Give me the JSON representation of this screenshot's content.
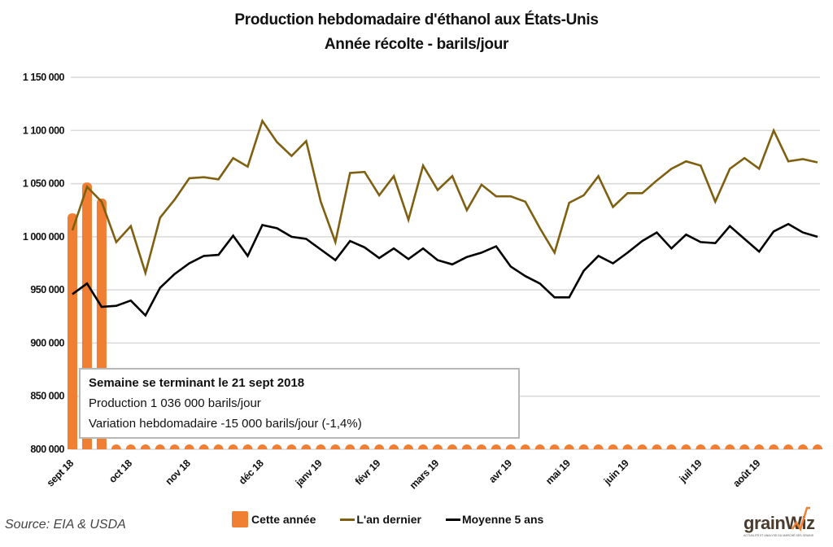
{
  "chart_data": {
    "type": "bar+line",
    "title": "Production hebdomadaire d'éthanol aux États-Unis",
    "subtitle": "Année récolte - baril/jour",
    "title_lines": [
      "Production hebdomadaire d'éthanol aux États-Unis",
      "Année récolte - barils/jour"
    ],
    "xlabel": "",
    "ylabel": "",
    "ylim": [
      800000,
      1150000
    ],
    "yticks": [
      800000,
      850000,
      900000,
      950000,
      1000000,
      1050000,
      1100000,
      1150000
    ],
    "ytick_labels": [
      "800 000",
      "850 000",
      "900 000",
      "950 000",
      "1 000 000",
      "1 050 000",
      "1 100 000",
      "1 150 000"
    ],
    "grid": true,
    "n_weeks": 52,
    "xtick_labels": [
      "sept 18",
      "oct 18",
      "nov 18",
      "déc 18",
      "janv 19",
      "févr 19",
      "mars 19",
      "avr 19",
      "mai 19",
      "juin 19",
      "juil 19",
      "août 19"
    ],
    "xtick_week_index": [
      0,
      4,
      8,
      13,
      17,
      21,
      25,
      30,
      34,
      38,
      43,
      47
    ],
    "legend_position": "bottom",
    "series": [
      {
        "name": "Cette année",
        "type": "bar",
        "color": "#f07f33",
        "values": [
          1022000,
          1051000,
          1036000,
          null,
          null,
          null,
          null,
          null,
          null,
          null,
          null,
          null,
          null,
          null,
          null,
          null,
          null,
          null,
          null,
          null,
          null,
          null,
          null,
          null,
          null,
          null,
          null,
          null,
          null,
          null,
          null,
          null,
          null,
          null,
          null,
          null,
          null,
          null,
          null,
          null,
          null,
          null,
          null,
          null,
          null,
          null,
          null,
          null,
          null,
          null,
          null,
          null
        ]
      },
      {
        "name": "L'an dernier",
        "type": "line",
        "color": "#7f5f10",
        "values": [
          1006000,
          1047000,
          1033000,
          995000,
          1010000,
          966000,
          1018000,
          1035000,
          1055000,
          1056000,
          1054000,
          1074000,
          1066000,
          1109000,
          1089000,
          1076000,
          1090000,
          1033000,
          995000,
          1060000,
          1061000,
          1039000,
          1057000,
          1016000,
          1067000,
          1044000,
          1057000,
          1025000,
          1049000,
          1038000,
          1038000,
          1033000,
          1008000,
          985000,
          1032000,
          1039000,
          1057000,
          1028000,
          1041000,
          1041000,
          1053000,
          1064000,
          1071000,
          1067000,
          1033000,
          1064000,
          1074000,
          1064000,
          1100000,
          1071000,
          1073000,
          1070000
        ]
      },
      {
        "name": "Moyenne 5 ans",
        "type": "line",
        "color": "#000000",
        "values": [
          946000,
          956000,
          934000,
          935000,
          940000,
          926000,
          952000,
          965000,
          975000,
          982000,
          983000,
          1001000,
          982000,
          1011000,
          1008000,
          1000000,
          998000,
          988000,
          978000,
          996000,
          990000,
          980000,
          989000,
          979000,
          989000,
          978000,
          974000,
          981000,
          985000,
          991000,
          972000,
          963000,
          956000,
          943000,
          943000,
          968000,
          982000,
          975000,
          985000,
          996000,
          1004000,
          989000,
          1002000,
          995000,
          994000,
          1010000,
          998000,
          986000,
          1005000,
          1012000,
          1004000,
          1000000
        ]
      }
    ],
    "annotations": [
      "Semaine se terminant le 21 sept 2018",
      "Production 1 036 000 barils/jour",
      "Variation hebdomadaire -15 000 barils/jour (-1,4%)"
    ]
  },
  "annotation": {
    "heading": "Semaine se terminant le 21 sept 2018",
    "production": "Production 1 036 000 barils/jour",
    "variation": "Variation hebdomadaire -15 000 barils/jour (-1,4%)"
  },
  "legend": {
    "this_year": "Cette année",
    "last_year": "L'an dernier",
    "avg5": "Moyenne 5 ans"
  },
  "source": "Source: EIA & USDA",
  "logo": {
    "name": "grainwiz",
    "wordmark": "grainWiz",
    "tagline": "ACTUALITÉ ET ANALYSE DU MARCHÉ DES GRAINS"
  },
  "colors": {
    "bar": "#f07f33",
    "last_year": "#7f5f10",
    "avg5": "#000000",
    "grid": "#d9d9d9"
  }
}
